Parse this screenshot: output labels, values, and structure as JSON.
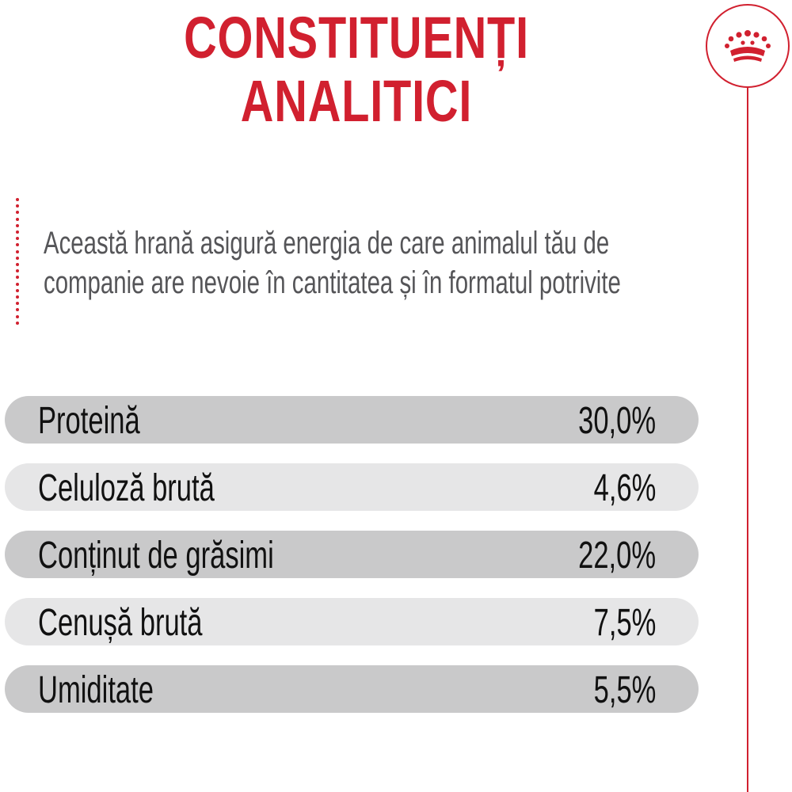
{
  "title": {
    "line1": "CONSTITUENȚI",
    "line2": "ANALITICI"
  },
  "intro": {
    "line1": "Această hrană asigură energia de care animalul tău de",
    "line2": "companie are nevoie în cantitatea și în formatul potrivite"
  },
  "constituents": [
    {
      "label": "Proteină",
      "value": "30,0%"
    },
    {
      "label": "Celuloză brută",
      "value": "4,6%"
    },
    {
      "label": "Conținut de grăsimi",
      "value": "22,0%"
    },
    {
      "label": "Cenușă brută",
      "value": "7,5%"
    },
    {
      "label": "Umiditate",
      "value": "5,5%"
    }
  ],
  "colors": {
    "accent": "#d1202f",
    "text": "#111111",
    "intro_text": "#555558",
    "row_dark": "#c9c9ca",
    "row_light": "#e6e6e7"
  },
  "icons": {
    "logo": "crown-icon"
  }
}
